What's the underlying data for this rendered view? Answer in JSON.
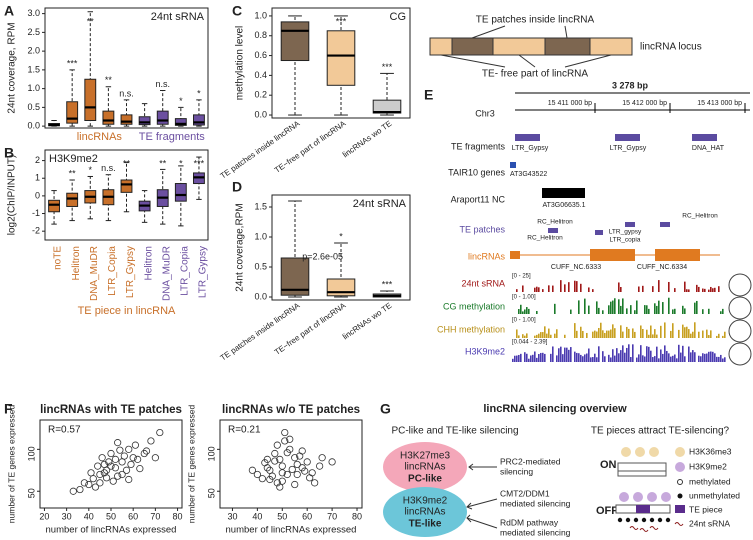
{
  "chart_data": [
    {
      "type": "box",
      "label": "A",
      "title": "24nt sRNA",
      "ylabel": "24nt coverage, RPM",
      "boxes": [
        {
          "min": 0,
          "q1": 0.01,
          "median": 0.03,
          "q3": 0.07,
          "max": 0.15
        },
        {
          "min": 0,
          "q1": 0.08,
          "median": 0.2,
          "q3": 0.65,
          "max": 1.5
        },
        {
          "min": 0,
          "q1": 0.15,
          "median": 0.5,
          "q3": 1.25,
          "max": 3.05
        },
        {
          "min": 0,
          "q1": 0.05,
          "median": 0.15,
          "q3": 0.4,
          "max": 1.05
        },
        {
          "min": 0,
          "q1": 0.05,
          "median": 0.12,
          "q3": 0.3,
          "max": 0.7
        },
        {
          "min": 0,
          "q1": 0.04,
          "median": 0.1,
          "q3": 0.25,
          "max": 0.6
        },
        {
          "min": 0,
          "q1": 0.05,
          "median": 0.15,
          "q3": 0.4,
          "max": 0.95
        },
        {
          "min": 0,
          "q1": 0.02,
          "median": 0.06,
          "q3": 0.2,
          "max": 0.5
        },
        {
          "min": 0,
          "q1": 0.03,
          "median": 0.1,
          "q3": 0.3,
          "max": 0.7
        }
      ],
      "colors": [
        "#9a9a9a",
        "#c8702a",
        "#c8702a",
        "#c8702a",
        "#c8702a",
        "#6b4fa0",
        "#6b4fa0",
        "#6b4fa0",
        "#6b4fa0"
      ],
      "groups": [
        {
          "name": "lincRNAs",
          "color": "#c8702a"
        },
        {
          "name": "TE fragments",
          "color": "#6b4fa0"
        }
      ],
      "significance": [
        null,
        "***",
        "**",
        "**",
        "n.s.",
        null,
        "n.s.",
        "*",
        "*"
      ],
      "ylim": [
        -0.05,
        3.15
      ],
      "yticks": [
        {
          "value": 0,
          "label": "0.0"
        },
        {
          "value": 0.5,
          "label": "0.5"
        },
        {
          "value": 1,
          "label": "1.0"
        },
        {
          "value": 1.5,
          "label": "1.5"
        },
        {
          "value": 2,
          "label": "2.0"
        },
        {
          "value": 2.5,
          "label": "2.5"
        },
        {
          "value": 3,
          "label": "3.0"
        }
      ]
    },
    {
      "type": "box",
      "label": "B",
      "title": "H3K9me2",
      "ylabel": "log2(ChIP/INPUT)",
      "xlabel": "TE piece in lincRNA",
      "categories": [
        "noTE",
        "Helitron",
        "DNA_MuDR",
        "LTR_Copia",
        "LTR_Gypsy",
        "Helitron",
        "DNA_MuDR",
        "LTR_Copia",
        "LTR_Gypsy"
      ],
      "boxes": [
        {
          "min": -1.6,
          "q1": -0.9,
          "median": -0.5,
          "q3": -0.25,
          "max": 0.3
        },
        {
          "min": -1.4,
          "q1": -0.6,
          "median": -0.15,
          "q3": 0.15,
          "max": 0.9
        },
        {
          "min": -1.3,
          "q1": -0.4,
          "median": -0.05,
          "q3": 0.3,
          "max": 1.1
        },
        {
          "min": -1.4,
          "q1": -0.5,
          "median": -0.05,
          "q3": 0.35,
          "max": 1.2
        },
        {
          "min": -0.9,
          "q1": 0.2,
          "median": 0.65,
          "q3": 0.9,
          "max": 1.9
        },
        {
          "min": -1.5,
          "q1": -0.85,
          "median": -0.55,
          "q3": -0.3,
          "max": 0.3
        },
        {
          "min": -1.6,
          "q1": -0.6,
          "median": -0.1,
          "q3": 0.35,
          "max": 1.5
        },
        {
          "min": -1.7,
          "q1": -0.3,
          "median": 0.05,
          "q3": 0.7,
          "max": 1.7
        },
        {
          "min": -0.2,
          "q1": 0.7,
          "median": 1.05,
          "q3": 1.3,
          "max": 2.2
        }
      ],
      "colors": [
        "#c8702a",
        "#c8702a",
        "#c8702a",
        "#c8702a",
        "#c8702a",
        "#6b4fa0",
        "#6b4fa0",
        "#6b4fa0",
        "#6b4fa0"
      ],
      "significance": [
        null,
        "**",
        "*",
        "n.s.",
        "**",
        null,
        "**",
        "*",
        "***"
      ],
      "ylim": [
        -2.5,
        2.6
      ],
      "yticks": [
        -2,
        -1,
        0,
        1,
        2
      ]
    },
    {
      "type": "box",
      "label": "C",
      "title": "CG",
      "ylabel": "methylation level",
      "categories": [
        "TE patches inside lincRNA",
        "TE−free part of lincRNA",
        "lincRNAs wo TE"
      ],
      "boxes": [
        {
          "min": 0,
          "q1": 0.55,
          "median": 0.85,
          "q3": 0.94,
          "max": 1.0
        },
        {
          "min": 0,
          "q1": 0.3,
          "median": 0.6,
          "q3": 0.85,
          "max": 1.0
        },
        {
          "min": 0,
          "q1": 0.02,
          "median": 0.03,
          "q3": 0.15,
          "max": 0.42
        }
      ],
      "colors": [
        "#7d6650",
        "#f2c998",
        "#cccccc"
      ],
      "significance": [
        null,
        "***",
        "***"
      ],
      "ylim": [
        -0.03,
        1.08
      ],
      "yticks": [
        {
          "value": 0,
          "label": "0.0"
        },
        {
          "value": 0.2,
          "label": "0.2"
        },
        {
          "value": 0.4,
          "label": "0.4"
        },
        {
          "value": 0.6,
          "label": "0.6"
        },
        {
          "value": 0.8,
          "label": "0.8"
        },
        {
          "value": 1,
          "label": "1.0"
        }
      ]
    },
    {
      "type": "box",
      "label": "D",
      "title": "24nt sRNA",
      "ylabel": "24nt coverage,RPM",
      "annotation": "p=2.6e-05",
      "categories": [
        "TE patches inside lincRNA",
        "TE−free part of lincRNA",
        "lincRNAs wo TE"
      ],
      "boxes": [
        {
          "min": 0,
          "q1": 0.03,
          "median": 0.12,
          "q3": 0.65,
          "max": 1.6
        },
        {
          "min": 0,
          "q1": 0.02,
          "median": 0.08,
          "q3": 0.3,
          "max": 0.9
        },
        {
          "min": 0,
          "q1": 0,
          "median": 0.02,
          "q3": 0.05,
          "max": 0.1
        }
      ],
      "colors": [
        "#7d6650",
        "#f2c998",
        "#cccccc"
      ],
      "significance": [
        null,
        "*",
        "***"
      ],
      "ylim": [
        -0.05,
        1.7
      ],
      "yticks": [
        {
          "value": 0,
          "label": "0.0"
        },
        {
          "value": 0.5,
          "label": "0.5"
        },
        {
          "value": 1,
          "label": "1.0"
        },
        {
          "value": 1.5,
          "label": "1.5"
        }
      ]
    },
    {
      "type": "scatter",
      "label": "F",
      "title": "lincRNAs with TE patches",
      "annotation": "R=0.57",
      "xlabel": "number of lincRNAs expressed",
      "ylabel": "number of TE genes expressed",
      "x": [
        45,
        50,
        42,
        55,
        60,
        48,
        52,
        38,
        65,
        58,
        47,
        53,
        44,
        62,
        56,
        40,
        49,
        51,
        57,
        46,
        54,
        43,
        59,
        61,
        36,
        68,
        63,
        50,
        45,
        55,
        72,
        41,
        66,
        52,
        48,
        58,
        70,
        33,
        53,
        47
      ],
      "values": [
        70,
        80,
        65,
        85,
        90,
        75,
        78,
        60,
        95,
        100,
        72,
        68,
        80,
        88,
        92,
        58,
        85,
        62,
        75,
        90,
        99,
        55,
        82,
        105,
        52,
        110,
        77,
        95,
        60,
        70,
        120,
        72,
        98,
        88,
        66,
        64,
        90,
        50,
        108,
        82
      ],
      "xlim": [
        18,
        82
      ],
      "xticks": [
        20,
        30,
        40,
        50,
        60,
        70,
        80
      ],
      "ylim": [
        30,
        135
      ],
      "yticks": [
        50,
        100
      ]
    },
    {
      "type": "scatter",
      "title": "lincRNAs w/o TE patches",
      "annotation": "R=0.21",
      "xlabel": "number of lincRNAs expressed",
      "x": [
        45,
        50,
        48,
        55,
        60,
        52,
        47,
        42,
        58,
        53,
        49,
        56,
        44,
        62,
        51,
        46,
        54,
        57,
        40,
        65,
        50,
        48,
        59,
        43,
        61,
        52,
        55,
        47,
        38,
        66,
        53,
        45,
        58,
        50,
        70,
        56,
        49,
        63,
        51,
        44
      ],
      "values": [
        75,
        80,
        60,
        90,
        85,
        70,
        95,
        65,
        78,
        100,
        55,
        82,
        88,
        72,
        110,
        68,
        76,
        92,
        70,
        80,
        62,
        105,
        74,
        84,
        66,
        96,
        58,
        86,
        75,
        90,
        112,
        64,
        98,
        72,
        85,
        70,
        88,
        60,
        120,
        78
      ],
      "xlim": [
        25,
        82
      ],
      "xticks": [
        30,
        40,
        50,
        60,
        70,
        80
      ],
      "ylim": [
        30,
        135
      ],
      "yticks": [
        50,
        100
      ]
    }
  ],
  "schematic": {
    "top": "TE patches inside lincRNA",
    "locus": "lincRNA locus",
    "bottom": "TE- free part of lincRNA"
  },
  "browser": {
    "label": "E",
    "span": "3 278 bp",
    "chrom": "Chr3",
    "positions": [
      "15 411 000 bp",
      "15 412 000 bp",
      "15 413 000 bp"
    ],
    "tracks": [
      "TE fragments",
      "TAIR10 genes",
      "Araport11 NC",
      "TE patches",
      "lincRNAs",
      "24nt sRNA",
      "CG methylation",
      "CHH methylation",
      "H3K9me2"
    ],
    "ranges": [
      "[0 - 25]",
      "[0 - 1.00]",
      "[0 - 1.00]",
      "[0.044 - 2.39]"
    ],
    "te_fragments": [
      "LTR_Gypsy",
      "LTR_Gypsy",
      "DNA_HAT"
    ],
    "gene": "AT3G43522",
    "nc": "AT3G06635.1",
    "te_patches": [
      "RC_Helitron",
      "RC_Helitron",
      "RC_Helitron",
      "LTR_gypsy",
      "LTR_copia"
    ],
    "lincrnas": [
      "CUFF_NC.6333",
      "CUFF_NC.6334"
    ]
  },
  "overview": {
    "label": "G",
    "title": "lincRNA silencing overview",
    "left_title": "PC-like and TE-like silencing",
    "right_title": "TE pieces attract TE-silencing?",
    "pc": [
      "H3K27me3",
      "lincRNAs",
      "PC-like"
    ],
    "te": [
      "H3K9me2",
      "lincRNAs",
      "TE-like"
    ],
    "mechanisms": [
      [
        "PRC2-mediated",
        "silencing"
      ],
      [
        "CMT2/DDM1",
        "mediated silencing"
      ],
      [
        "RdDM pathway",
        "mediated silencing"
      ]
    ],
    "states": [
      "ON",
      "OFF"
    ],
    "legend": [
      "H3K36me3",
      "H3K9me2",
      "methylated",
      "unmethylated",
      "TE piece",
      "24nt sRNA"
    ]
  }
}
